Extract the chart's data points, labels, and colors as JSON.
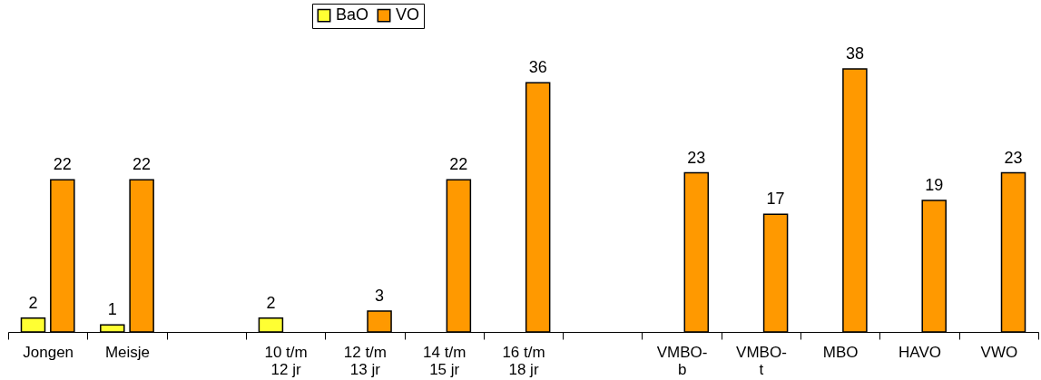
{
  "chart_data": {
    "type": "bar",
    "categories": [
      "Jongen",
      "Meisje",
      null,
      "10 t/m\n12 jr",
      "12 t/m\n13 jr",
      "14 t/m\n15 jr",
      "16 t/m\n18 jr",
      null,
      "VMBO-\nb",
      "VMBO-\nt",
      "MBO",
      "HAVO",
      "VWO"
    ],
    "series": [
      {
        "name": "BaO",
        "color": "#ffff33",
        "values": [
          2,
          1,
          null,
          2,
          null,
          null,
          null,
          null,
          null,
          null,
          null,
          null,
          null
        ]
      },
      {
        "name": "VO",
        "color": "#ff9900",
        "values": [
          22,
          22,
          null,
          null,
          3,
          22,
          36,
          null,
          23,
          17,
          38,
          19,
          23
        ]
      }
    ],
    "data_labels": true,
    "legend": "top",
    "grid": false
  }
}
